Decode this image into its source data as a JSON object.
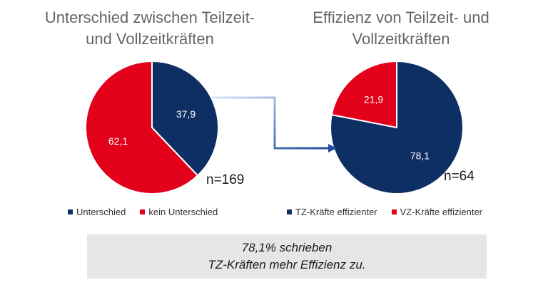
{
  "colors": {
    "navy": "#0e2f63",
    "red": "#e2001a",
    "arrow": "#1f4e9c"
  },
  "chart_data": [
    {
      "type": "pie",
      "title": "Unterschied zwischen Teilzeit- und Vollzeitkräften",
      "title_lines": [
        "Unterschied zwischen Teilzeit-",
        "und Vollzeitkräften"
      ],
      "slices": [
        {
          "label": "Unterschied",
          "value": 37.9,
          "value_label": "37,9",
          "color": "#0e2f63"
        },
        {
          "label": "kein Unterschied",
          "value": 62.1,
          "value_label": "62,1",
          "color": "#e2001a"
        }
      ],
      "annotation": "n=169",
      "legend": "bottom"
    },
    {
      "type": "pie",
      "title": "Effizienz von Teilzeit- und Vollzeitkräften",
      "title_lines": [
        "Effizienz von Teilzeit- und",
        "Vollzeitkräften"
      ],
      "slices": [
        {
          "label": "TZ-Kräfte effizienter",
          "value": 78.1,
          "value_label": "78,1",
          "color": "#0e2f63"
        },
        {
          "label": "VZ-Kräfte effizienter",
          "value": 21.9,
          "value_label": "21,9",
          "color": "#e2001a"
        }
      ],
      "annotation": "n=64",
      "legend": "bottom"
    }
  ],
  "note": {
    "line1": "78,1% schrieben",
    "line2": "TZ-Kräften mehr Effizienz zu."
  }
}
